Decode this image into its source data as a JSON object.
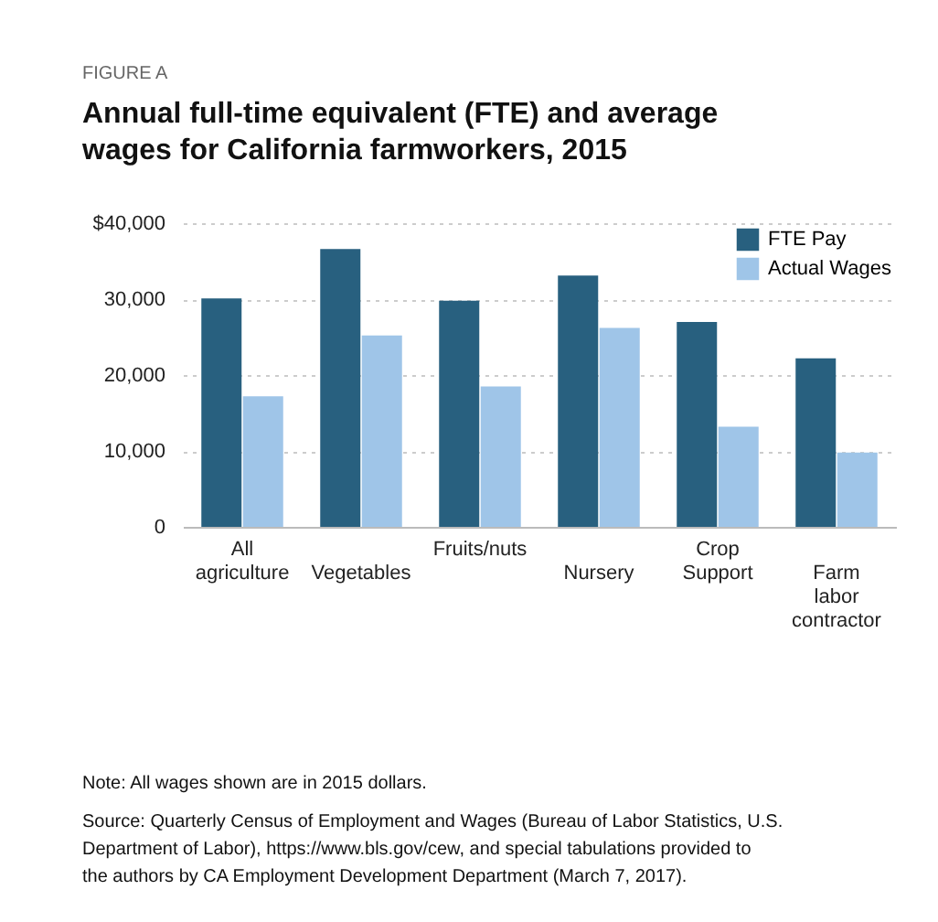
{
  "chart_data": {
    "type": "bar",
    "title": "Annual full-time equivalent (FTE) and average wages for California farmworkers, 2015",
    "annotations": [
      "FIGURE A",
      "Note: All wages shown are in 2015 dollars.",
      "Source: Quarterly Census of Employment and Wages (Bureau of Labor Statistics, U.S. Department of Labor), https://www.bls.gov/cew, and special tabulations provided to the authors by CA Employment Development Department (March 7, 2017)."
    ],
    "categories": [
      "All agriculture",
      "Vegetables",
      "Fruits/nuts",
      "Nursery",
      "Crop Support",
      "Farm labor contractor"
    ],
    "series": [
      {
        "name": "FTE Pay",
        "color": "#28607f",
        "values": [
          30100,
          36600,
          29800,
          33100,
          27000,
          22200
        ]
      },
      {
        "name": "Actual Wages",
        "color": "#9fc5e8",
        "values": [
          17200,
          25200,
          18500,
          26200,
          13200,
          9800
        ]
      }
    ],
    "ylim": [
      0,
      40000
    ],
    "yticks": [
      {
        "value": 0,
        "label": "0"
      },
      {
        "value": 10000,
        "label": "10,000"
      },
      {
        "value": 20000,
        "label": "20,000"
      },
      {
        "value": 30000,
        "label": "30,000"
      },
      {
        "value": 40000,
        "label": "$40,000"
      }
    ],
    "grid": "y",
    "legend": "top right"
  }
}
